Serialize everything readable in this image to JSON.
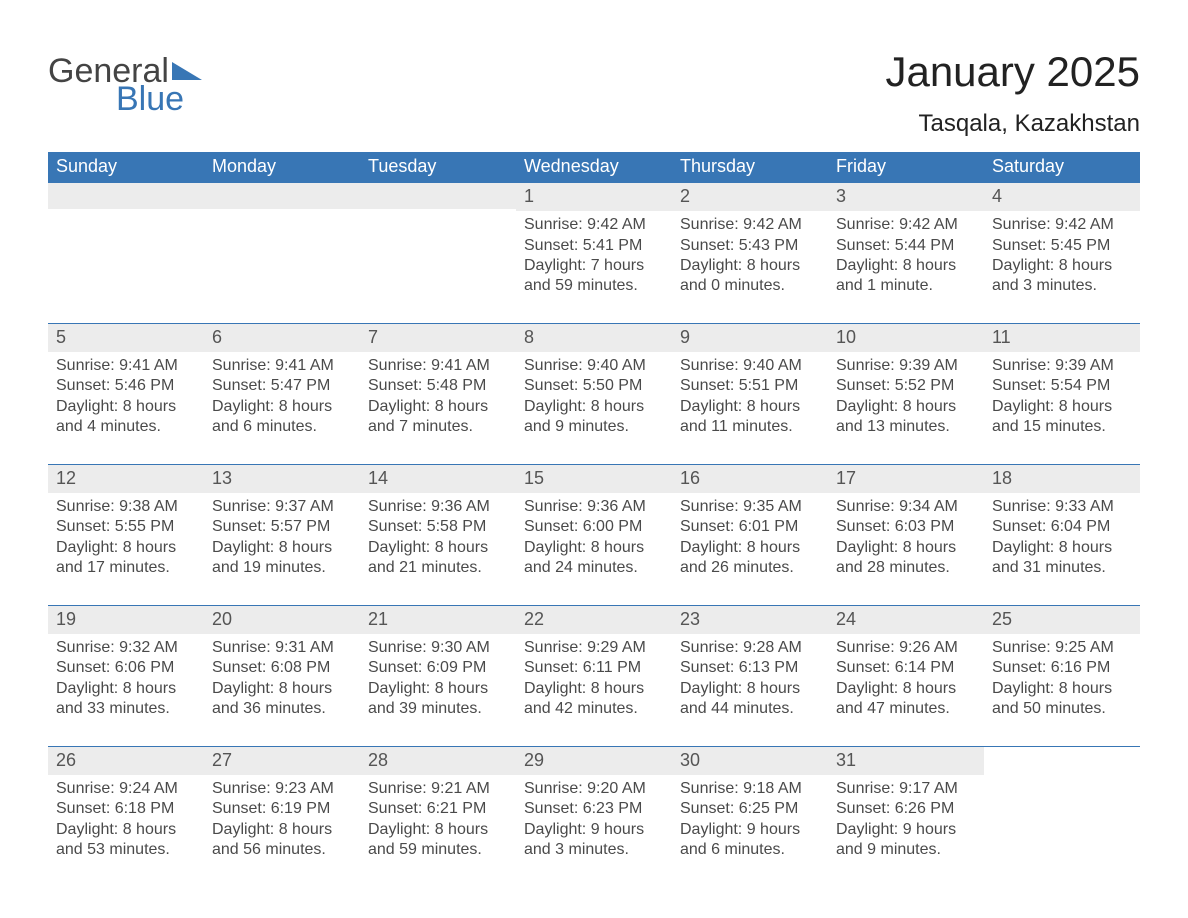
{
  "logo": {
    "text1": "General",
    "text2": "Blue"
  },
  "accent_color": "#3876b5",
  "title": "January 2025",
  "location": "Tasqala, Kazakhstan",
  "weekday_headers": [
    "Sunday",
    "Monday",
    "Tuesday",
    "Wednesday",
    "Thursday",
    "Friday",
    "Saturday"
  ],
  "weeks": [
    [
      null,
      null,
      null,
      {
        "n": "1",
        "sunrise": "Sunrise: 9:42 AM",
        "sunset": "Sunset: 5:41 PM",
        "daylight": "Daylight: 7 hours and 59 minutes."
      },
      {
        "n": "2",
        "sunrise": "Sunrise: 9:42 AM",
        "sunset": "Sunset: 5:43 PM",
        "daylight": "Daylight: 8 hours and 0 minutes."
      },
      {
        "n": "3",
        "sunrise": "Sunrise: 9:42 AM",
        "sunset": "Sunset: 5:44 PM",
        "daylight": "Daylight: 8 hours and 1 minute."
      },
      {
        "n": "4",
        "sunrise": "Sunrise: 9:42 AM",
        "sunset": "Sunset: 5:45 PM",
        "daylight": "Daylight: 8 hours and 3 minutes."
      }
    ],
    [
      {
        "n": "5",
        "sunrise": "Sunrise: 9:41 AM",
        "sunset": "Sunset: 5:46 PM",
        "daylight": "Daylight: 8 hours and 4 minutes."
      },
      {
        "n": "6",
        "sunrise": "Sunrise: 9:41 AM",
        "sunset": "Sunset: 5:47 PM",
        "daylight": "Daylight: 8 hours and 6 minutes."
      },
      {
        "n": "7",
        "sunrise": "Sunrise: 9:41 AM",
        "sunset": "Sunset: 5:48 PM",
        "daylight": "Daylight: 8 hours and 7 minutes."
      },
      {
        "n": "8",
        "sunrise": "Sunrise: 9:40 AM",
        "sunset": "Sunset: 5:50 PM",
        "daylight": "Daylight: 8 hours and 9 minutes."
      },
      {
        "n": "9",
        "sunrise": "Sunrise: 9:40 AM",
        "sunset": "Sunset: 5:51 PM",
        "daylight": "Daylight: 8 hours and 11 minutes."
      },
      {
        "n": "10",
        "sunrise": "Sunrise: 9:39 AM",
        "sunset": "Sunset: 5:52 PM",
        "daylight": "Daylight: 8 hours and 13 minutes."
      },
      {
        "n": "11",
        "sunrise": "Sunrise: 9:39 AM",
        "sunset": "Sunset: 5:54 PM",
        "daylight": "Daylight: 8 hours and 15 minutes."
      }
    ],
    [
      {
        "n": "12",
        "sunrise": "Sunrise: 9:38 AM",
        "sunset": "Sunset: 5:55 PM",
        "daylight": "Daylight: 8 hours and 17 minutes."
      },
      {
        "n": "13",
        "sunrise": "Sunrise: 9:37 AM",
        "sunset": "Sunset: 5:57 PM",
        "daylight": "Daylight: 8 hours and 19 minutes."
      },
      {
        "n": "14",
        "sunrise": "Sunrise: 9:36 AM",
        "sunset": "Sunset: 5:58 PM",
        "daylight": "Daylight: 8 hours and 21 minutes."
      },
      {
        "n": "15",
        "sunrise": "Sunrise: 9:36 AM",
        "sunset": "Sunset: 6:00 PM",
        "daylight": "Daylight: 8 hours and 24 minutes."
      },
      {
        "n": "16",
        "sunrise": "Sunrise: 9:35 AM",
        "sunset": "Sunset: 6:01 PM",
        "daylight": "Daylight: 8 hours and 26 minutes."
      },
      {
        "n": "17",
        "sunrise": "Sunrise: 9:34 AM",
        "sunset": "Sunset: 6:03 PM",
        "daylight": "Daylight: 8 hours and 28 minutes."
      },
      {
        "n": "18",
        "sunrise": "Sunrise: 9:33 AM",
        "sunset": "Sunset: 6:04 PM",
        "daylight": "Daylight: 8 hours and 31 minutes."
      }
    ],
    [
      {
        "n": "19",
        "sunrise": "Sunrise: 9:32 AM",
        "sunset": "Sunset: 6:06 PM",
        "daylight": "Daylight: 8 hours and 33 minutes."
      },
      {
        "n": "20",
        "sunrise": "Sunrise: 9:31 AM",
        "sunset": "Sunset: 6:08 PM",
        "daylight": "Daylight: 8 hours and 36 minutes."
      },
      {
        "n": "21",
        "sunrise": "Sunrise: 9:30 AM",
        "sunset": "Sunset: 6:09 PM",
        "daylight": "Daylight: 8 hours and 39 minutes."
      },
      {
        "n": "22",
        "sunrise": "Sunrise: 9:29 AM",
        "sunset": "Sunset: 6:11 PM",
        "daylight": "Daylight: 8 hours and 42 minutes."
      },
      {
        "n": "23",
        "sunrise": "Sunrise: 9:28 AM",
        "sunset": "Sunset: 6:13 PM",
        "daylight": "Daylight: 8 hours and 44 minutes."
      },
      {
        "n": "24",
        "sunrise": "Sunrise: 9:26 AM",
        "sunset": "Sunset: 6:14 PM",
        "daylight": "Daylight: 8 hours and 47 minutes."
      },
      {
        "n": "25",
        "sunrise": "Sunrise: 9:25 AM",
        "sunset": "Sunset: 6:16 PM",
        "daylight": "Daylight: 8 hours and 50 minutes."
      }
    ],
    [
      {
        "n": "26",
        "sunrise": "Sunrise: 9:24 AM",
        "sunset": "Sunset: 6:18 PM",
        "daylight": "Daylight: 8 hours and 53 minutes."
      },
      {
        "n": "27",
        "sunrise": "Sunrise: 9:23 AM",
        "sunset": "Sunset: 6:19 PM",
        "daylight": "Daylight: 8 hours and 56 minutes."
      },
      {
        "n": "28",
        "sunrise": "Sunrise: 9:21 AM",
        "sunset": "Sunset: 6:21 PM",
        "daylight": "Daylight: 8 hours and 59 minutes."
      },
      {
        "n": "29",
        "sunrise": "Sunrise: 9:20 AM",
        "sunset": "Sunset: 6:23 PM",
        "daylight": "Daylight: 9 hours and 3 minutes."
      },
      {
        "n": "30",
        "sunrise": "Sunrise: 9:18 AM",
        "sunset": "Sunset: 6:25 PM",
        "daylight": "Daylight: 9 hours and 6 minutes."
      },
      {
        "n": "31",
        "sunrise": "Sunrise: 9:17 AM",
        "sunset": "Sunset: 6:26 PM",
        "daylight": "Daylight: 9 hours and 9 minutes."
      },
      null
    ]
  ]
}
